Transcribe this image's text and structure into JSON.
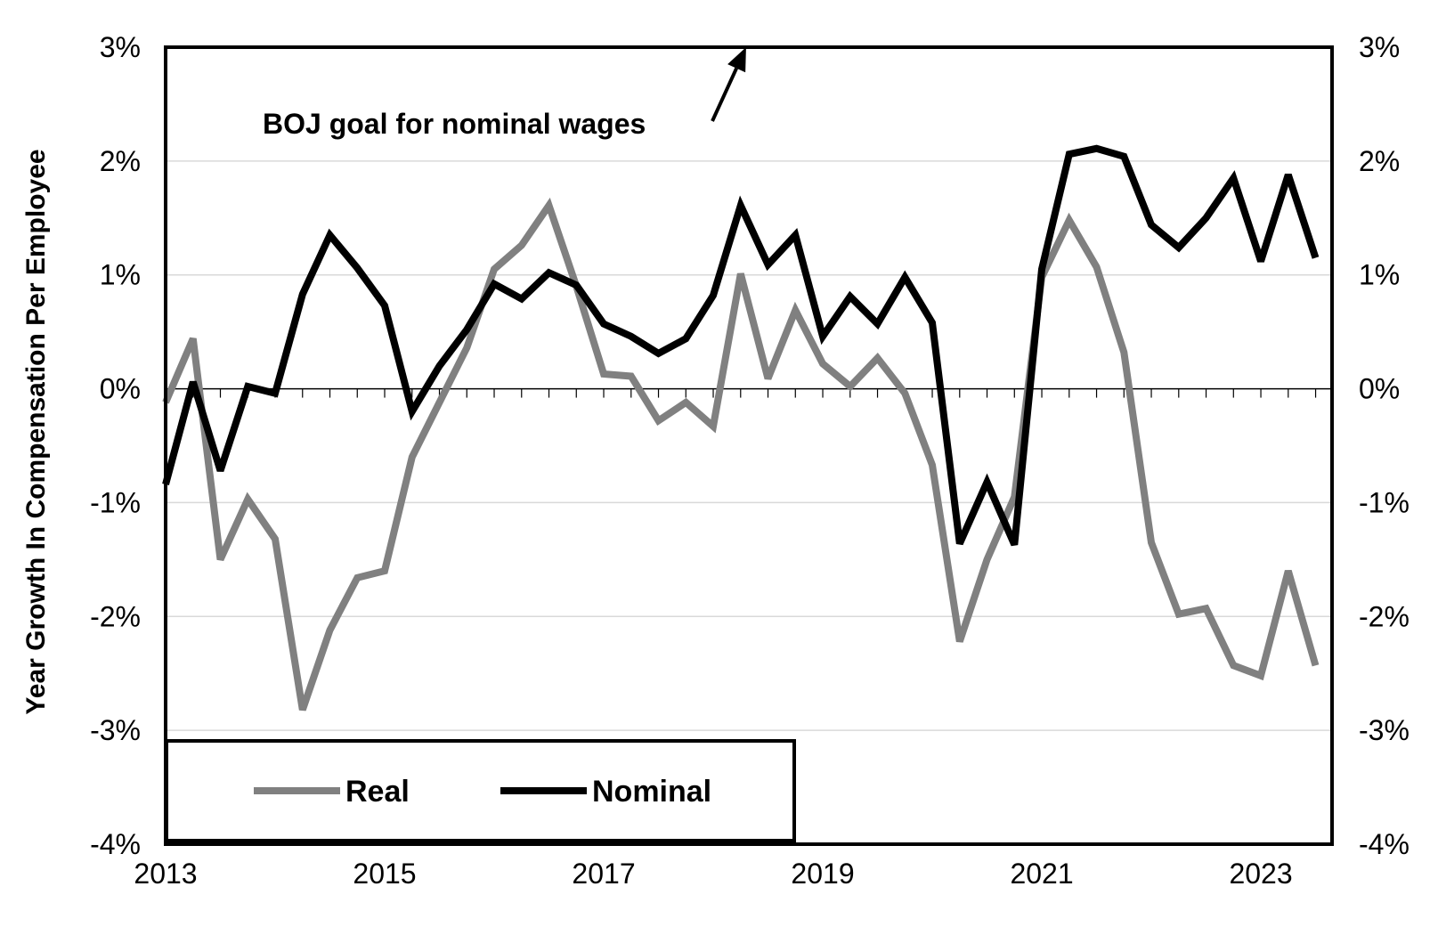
{
  "chart_data": {
    "type": "line",
    "title": "",
    "xlabel": "",
    "ylabel": "Year Growth In Compensation Per Employee",
    "x_start": 2013.0,
    "x_step": 0.25,
    "xlim": [
      2013,
      2023.65
    ],
    "x_ticks": [
      "2013",
      "2015",
      "2017",
      "2019",
      "2021",
      "2023"
    ],
    "ylim": [
      -4,
      3
    ],
    "y_ticks": [
      "-4%",
      "-3%",
      "-2%",
      "-1%",
      "0%",
      "1%",
      "2%",
      "3%"
    ],
    "y_ticks_right": [
      "-4%",
      "-3%",
      "-2%",
      "-1%",
      "0%",
      "1%",
      "2%",
      "3%"
    ],
    "grid": true,
    "legend_position": "bottom-left",
    "series": [
      {
        "name": "Real",
        "color": "#808080",
        "values": [
          -0.12,
          0.44,
          -1.5,
          -0.97,
          -1.32,
          -2.82,
          -2.12,
          -1.66,
          -1.6,
          -0.6,
          -0.12,
          0.36,
          1.05,
          1.26,
          1.61,
          0.9,
          0.13,
          0.11,
          -0.28,
          -0.12,
          -0.33,
          1.01,
          0.09,
          0.69,
          0.22,
          0.02,
          0.27,
          -0.04,
          -0.67,
          -2.22,
          -1.5,
          -0.95,
          0.98,
          1.48,
          1.07,
          0.32,
          -1.35,
          -1.98,
          -1.93,
          -2.43,
          -2.52,
          -1.6,
          -2.43
        ]
      },
      {
        "name": "Nominal",
        "color": "#000000",
        "values": [
          -0.84,
          0.06,
          -0.72,
          0.02,
          -0.04,
          0.83,
          1.35,
          1.06,
          0.73,
          -0.2,
          0.2,
          0.52,
          0.92,
          0.79,
          1.02,
          0.91,
          0.57,
          0.46,
          0.31,
          0.44,
          0.82,
          1.61,
          1.09,
          1.35,
          0.46,
          0.81,
          0.57,
          0.98,
          0.58,
          -1.36,
          -0.82,
          -1.37,
          1.05,
          2.06,
          2.11,
          2.04,
          1.44,
          1.24,
          1.5,
          1.85,
          1.12,
          1.88,
          1.15
        ]
      }
    ],
    "annotations": [
      {
        "text": "BOJ goal for nominal wages",
        "arrow_to": [
          2018.3,
          3.0
        ]
      }
    ]
  }
}
